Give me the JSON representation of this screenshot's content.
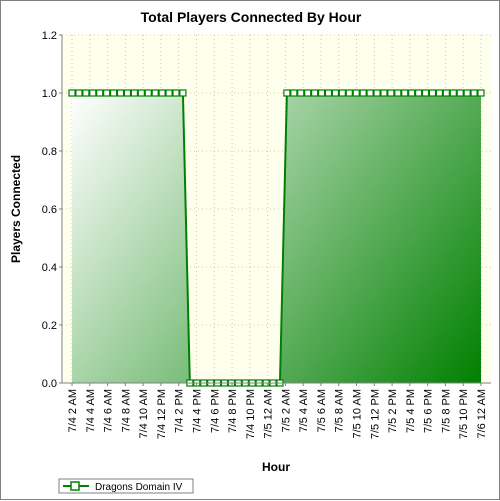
{
  "chart_data": {
    "type": "area",
    "title": "Total Players Connected By Hour",
    "xlabel": "Hour",
    "ylabel": "Players Connected",
    "ylim": [
      0,
      1.2
    ],
    "yticks": [
      "0.0",
      "0.2",
      "0.4",
      "0.6",
      "0.8",
      "1.0",
      "1.2"
    ],
    "x_tick_labels": [
      "7/4 2 AM",
      "7/4 4 AM",
      "7/4 6 AM",
      "7/4 8 AM",
      "7/4 10 AM",
      "7/4 12 PM",
      "7/4 2 PM",
      "7/4 4 PM",
      "7/4 6 PM",
      "7/4 8 PM",
      "7/4 10 PM",
      "7/5 12 AM",
      "7/5 2 AM",
      "7/5 4 AM",
      "7/5 6 AM",
      "7/5 8 AM",
      "7/5 10 AM",
      "7/5 12 PM",
      "7/5 2 PM",
      "7/5 4 PM",
      "7/5 6 PM",
      "7/5 8 PM",
      "7/5 10 PM",
      "7/6 12 AM"
    ],
    "x_hours_start_label": "7/4 2 AM",
    "grid": true,
    "legend_position": "bottom-left",
    "series": [
      {
        "name": "Dragons Domain IV",
        "color": "#008000",
        "values": [
          1,
          1,
          1,
          1,
          1,
          1,
          1,
          1,
          1,
          1,
          1,
          1,
          1,
          1,
          1,
          1,
          1,
          0,
          0,
          0,
          0,
          0,
          0,
          0,
          0,
          0,
          0,
          0,
          0,
          0,
          0,
          1,
          1,
          1,
          1,
          1,
          1,
          1,
          1,
          1,
          1,
          1,
          1,
          1,
          1,
          1,
          1,
          1,
          1,
          1,
          1,
          1,
          1,
          1,
          1,
          1,
          1,
          1,
          1,
          1
        ]
      }
    ]
  }
}
